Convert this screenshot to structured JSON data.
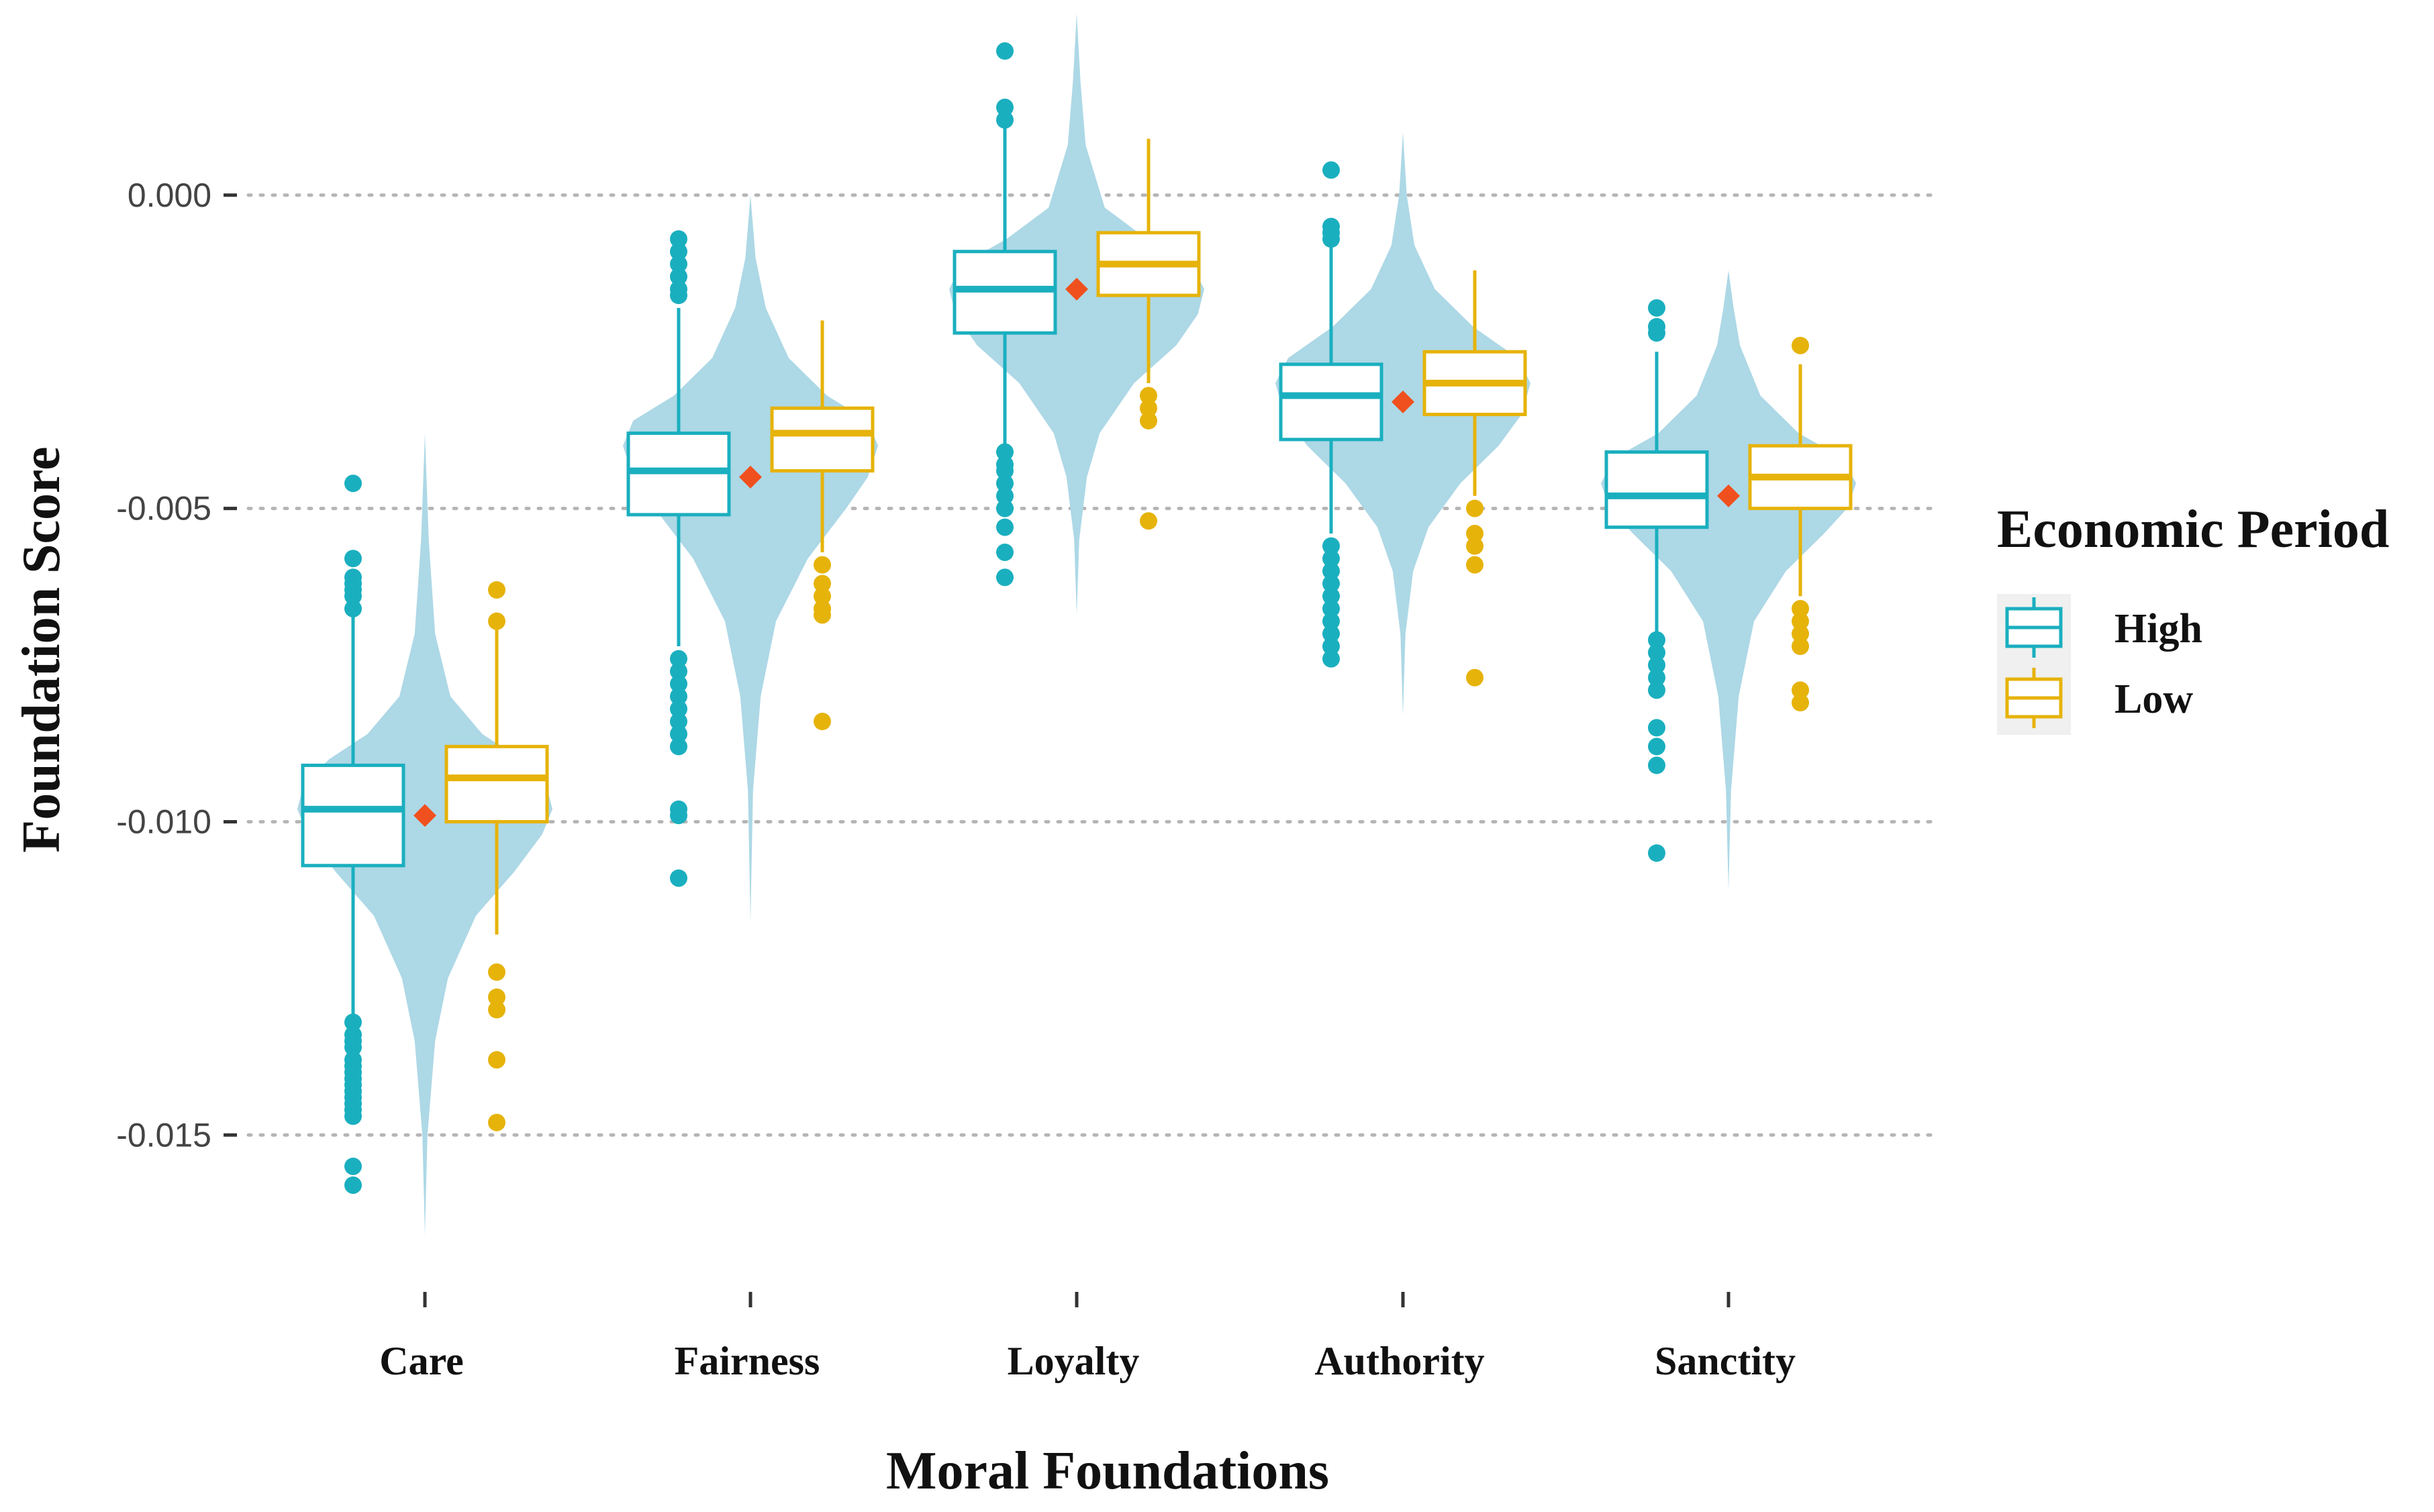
{
  "chart_data": {
    "type": "box-violin",
    "title": "",
    "xlabel": "Moral Foundations",
    "ylabel": "Foundation Score",
    "categories": [
      "Care",
      "Fairness",
      "Loyalty",
      "Authority",
      "Sanctity"
    ],
    "ylim": [
      -0.0167,
      0.0029
    ],
    "yticks": [
      0.0,
      -0.005,
      -0.01,
      -0.015
    ],
    "ytick_labels": [
      "0.000",
      "-0.005",
      "-0.010",
      "-0.015"
    ],
    "grid": "horizontal-dotted",
    "legend": {
      "title": "Economic Period",
      "position": "right",
      "entries": [
        {
          "name": "High",
          "color": "#1aafbf"
        },
        {
          "name": "Low",
          "color": "#e6b30a"
        }
      ]
    },
    "violin_color": "#add8e6",
    "mean_marker_color": "#f0501e",
    "violins": [
      {
        "category": "Care",
        "ymin": -0.0166,
        "ymax": -0.0038,
        "profile": [
          [
            -0.0166,
            0.0
          ],
          [
            -0.015,
            0.02
          ],
          [
            -0.0135,
            0.08
          ],
          [
            -0.0125,
            0.18
          ],
          [
            -0.0115,
            0.4
          ],
          [
            -0.0108,
            0.7
          ],
          [
            -0.0102,
            0.92
          ],
          [
            -0.0098,
            1.0
          ],
          [
            -0.0094,
            0.95
          ],
          [
            -0.009,
            0.75
          ],
          [
            -0.0086,
            0.45
          ],
          [
            -0.008,
            0.2
          ],
          [
            -0.007,
            0.08
          ],
          [
            -0.0055,
            0.03
          ],
          [
            -0.0038,
            0.0
          ]
        ]
      },
      {
        "category": "Fairness",
        "ymin": -0.0116,
        "ymax": 0.0,
        "profile": [
          [
            -0.0116,
            0.0
          ],
          [
            -0.0095,
            0.02
          ],
          [
            -0.008,
            0.08
          ],
          [
            -0.0068,
            0.2
          ],
          [
            -0.0058,
            0.45
          ],
          [
            -0.005,
            0.75
          ],
          [
            -0.0045,
            0.92
          ],
          [
            -0.004,
            1.0
          ],
          [
            -0.0036,
            0.92
          ],
          [
            -0.0032,
            0.6
          ],
          [
            -0.0026,
            0.3
          ],
          [
            -0.0018,
            0.12
          ],
          [
            -0.001,
            0.04
          ],
          [
            0.0,
            0.0
          ]
        ]
      },
      {
        "category": "Loyalty",
        "ymin": -0.0067,
        "ymax": 0.0029,
        "profile": [
          [
            -0.0067,
            0.0
          ],
          [
            -0.0055,
            0.02
          ],
          [
            -0.0045,
            0.08
          ],
          [
            -0.0038,
            0.18
          ],
          [
            -0.003,
            0.45
          ],
          [
            -0.0024,
            0.78
          ],
          [
            -0.0019,
            0.95
          ],
          [
            -0.0015,
            1.0
          ],
          [
            -0.0011,
            0.9
          ],
          [
            -0.0007,
            0.55
          ],
          [
            -0.0002,
            0.22
          ],
          [
            0.0008,
            0.07
          ],
          [
            0.0018,
            0.03
          ],
          [
            0.0029,
            0.0
          ]
        ]
      },
      {
        "category": "Authority",
        "ymin": -0.0083,
        "ymax": 0.001,
        "profile": [
          [
            -0.0083,
            0.0
          ],
          [
            -0.007,
            0.02
          ],
          [
            -0.006,
            0.08
          ],
          [
            -0.0053,
            0.2
          ],
          [
            -0.0046,
            0.45
          ],
          [
            -0.004,
            0.75
          ],
          [
            -0.0035,
            0.93
          ],
          [
            -0.003,
            1.0
          ],
          [
            -0.0026,
            0.9
          ],
          [
            -0.0021,
            0.55
          ],
          [
            -0.0015,
            0.25
          ],
          [
            -0.0008,
            0.09
          ],
          [
            0.0,
            0.03
          ],
          [
            0.001,
            0.0
          ]
        ]
      },
      {
        "category": "Sanctity",
        "ymin": -0.0111,
        "ymax": -0.0012,
        "profile": [
          [
            -0.0111,
            0.0
          ],
          [
            -0.0095,
            0.02
          ],
          [
            -0.008,
            0.08
          ],
          [
            -0.0068,
            0.2
          ],
          [
            -0.006,
            0.45
          ],
          [
            -0.0054,
            0.75
          ],
          [
            -0.005,
            0.93
          ],
          [
            -0.0046,
            1.0
          ],
          [
            -0.0042,
            0.9
          ],
          [
            -0.0038,
            0.55
          ],
          [
            -0.0032,
            0.25
          ],
          [
            -0.0024,
            0.09
          ],
          [
            -0.0018,
            0.04
          ],
          [
            -0.0012,
            0.0
          ]
        ]
      }
    ],
    "boxes": [
      {
        "category": "Care",
        "group": "High",
        "whisker_low": -0.0131,
        "q1": -0.0107,
        "median": -0.0098,
        "q3": -0.0091,
        "whisker_high": -0.0065,
        "outliers": [
          -0.0046,
          -0.0058,
          -0.0061,
          -0.0062,
          -0.0063,
          -0.0064,
          -0.0066,
          -0.0132,
          -0.0134,
          -0.0135,
          -0.0136,
          -0.0138,
          -0.0139,
          -0.014,
          -0.0141,
          -0.0142,
          -0.0143,
          -0.0144,
          -0.0145,
          -0.0146,
          -0.0147,
          -0.0155,
          -0.0158
        ]
      },
      {
        "category": "Care",
        "group": "Low",
        "whisker_low": -0.0118,
        "q1": -0.01,
        "median": -0.0093,
        "q3": -0.0088,
        "whisker_high": -0.0068,
        "outliers": [
          -0.0063,
          -0.0068,
          -0.0124,
          -0.0128,
          -0.013,
          -0.0138,
          -0.0148
        ]
      },
      {
        "category": "Fairness",
        "group": "High",
        "whisker_low": -0.0072,
        "q1": -0.0051,
        "median": -0.0044,
        "q3": -0.0038,
        "whisker_high": -0.0018,
        "outliers": [
          -0.0007,
          -0.0009,
          -0.0011,
          -0.0013,
          -0.0015,
          -0.0016,
          -0.0074,
          -0.0076,
          -0.0078,
          -0.008,
          -0.0082,
          -0.0084,
          -0.0086,
          -0.0088,
          -0.0098,
          -0.0099,
          -0.0109
        ]
      },
      {
        "category": "Fairness",
        "group": "Low",
        "whisker_low": -0.0057,
        "q1": -0.0044,
        "median": -0.0038,
        "q3": -0.0034,
        "whisker_high": -0.002,
        "outliers": [
          -0.0059,
          -0.0062,
          -0.0064,
          -0.0066,
          -0.0067,
          -0.0084
        ]
      },
      {
        "category": "Loyalty",
        "group": "High",
        "whisker_low": -0.004,
        "q1": -0.0022,
        "median": -0.0015,
        "q3": -0.0009,
        "whisker_high": 0.0011,
        "outliers": [
          0.0023,
          0.0014,
          0.0012,
          -0.0041,
          -0.0043,
          -0.0044,
          -0.0046,
          -0.0048,
          -0.005,
          -0.0053,
          -0.0057,
          -0.0061
        ]
      },
      {
        "category": "Loyalty",
        "group": "Low",
        "whisker_low": -0.003,
        "q1": -0.0016,
        "median": -0.0011,
        "q3": -0.0006,
        "whisker_high": 0.0009,
        "outliers": [
          -0.0032,
          -0.0034,
          -0.0036,
          -0.0052
        ]
      },
      {
        "category": "Authority",
        "group": "High",
        "whisker_low": -0.0054,
        "q1": -0.0039,
        "median": -0.0032,
        "q3": -0.0027,
        "whisker_high": -0.0008,
        "outliers": [
          0.0004,
          -0.0005,
          -0.0006,
          -0.0007,
          -0.0056,
          -0.0058,
          -0.006,
          -0.0062,
          -0.0064,
          -0.0066,
          -0.0068,
          -0.007,
          -0.0072,
          -0.0074
        ]
      },
      {
        "category": "Authority",
        "group": "Low",
        "whisker_low": -0.0048,
        "q1": -0.0035,
        "median": -0.003,
        "q3": -0.0025,
        "whisker_high": -0.0012,
        "outliers": [
          -0.005,
          -0.0054,
          -0.0056,
          -0.0059,
          -0.0077
        ]
      },
      {
        "category": "Sanctity",
        "group": "High",
        "whisker_low": -0.007,
        "q1": -0.0053,
        "median": -0.0048,
        "q3": -0.0041,
        "whisker_high": -0.0025,
        "outliers": [
          -0.0018,
          -0.0021,
          -0.0022,
          -0.0071,
          -0.0073,
          -0.0075,
          -0.0077,
          -0.0079,
          -0.0085,
          -0.0088,
          -0.0091,
          -0.0105
        ]
      },
      {
        "category": "Sanctity",
        "group": "Low",
        "whisker_low": -0.0064,
        "q1": -0.005,
        "median": -0.0045,
        "q3": -0.004,
        "whisker_high": -0.0027,
        "outliers": [
          -0.0024,
          -0.0066,
          -0.0068,
          -0.007,
          -0.0072,
          -0.0079,
          -0.0081
        ]
      }
    ],
    "means": [
      {
        "category": "Care",
        "value": -0.0099
      },
      {
        "category": "Fairness",
        "value": -0.0045
      },
      {
        "category": "Loyalty",
        "value": -0.0015
      },
      {
        "category": "Authority",
        "value": -0.0033
      },
      {
        "category": "Sanctity",
        "value": -0.0048
      }
    ]
  }
}
